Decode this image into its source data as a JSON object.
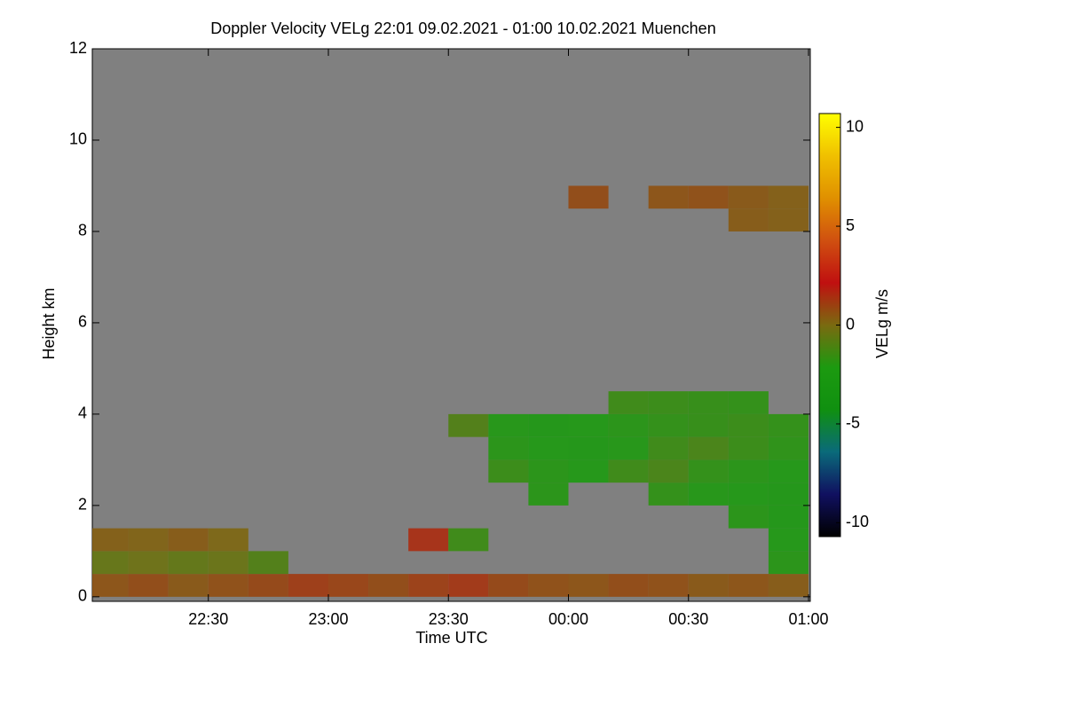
{
  "chart_data": {
    "type": "heatmap",
    "title": "Doppler Velocity VELg   22:01 09.02.2021 - 01:00 10.02.2021 Muenchen",
    "xlabel": "Time UTC",
    "ylabel": "Height km",
    "colorbar_label": "VELg m/s",
    "x": [
      "22:01",
      "22:10",
      "22:20",
      "22:30",
      "22:40",
      "22:50",
      "23:00",
      "23:10",
      "23:20",
      "23:30",
      "23:40",
      "23:50",
      "00:00",
      "00:10",
      "00:20",
      "00:30",
      "00:40",
      "00:50",
      "01:00"
    ],
    "y": [
      0,
      0.5,
      1,
      1.5,
      2,
      2.5,
      3,
      3.5,
      4,
      4.5,
      5,
      5.5,
      6,
      6.5,
      7,
      7.5,
      8,
      8.5,
      9,
      9.5,
      10,
      10.5,
      11,
      11.5,
      12
    ],
    "z": [
      [
        0.6,
        0.8,
        0.5,
        0.7,
        0.9,
        1.2,
        1.0,
        0.8,
        1.1,
        1.3,
        0.9,
        0.7,
        0.6,
        0.8,
        0.7,
        0.5,
        0.6,
        0.4
      ],
      [
        -0.5,
        -0.3,
        -0.6,
        -0.4,
        -1.0,
        null,
        null,
        null,
        null,
        null,
        null,
        null,
        null,
        null,
        null,
        null,
        null,
        -2.0
      ],
      [
        0.3,
        0.2,
        0.4,
        0.1,
        null,
        null,
        null,
        null,
        1.5,
        -1.5,
        null,
        null,
        null,
        null,
        null,
        null,
        null,
        -2.2
      ],
      [
        null,
        null,
        null,
        null,
        null,
        null,
        null,
        null,
        null,
        null,
        null,
        null,
        null,
        null,
        null,
        null,
        -2.0,
        -2.3
      ],
      [
        null,
        null,
        null,
        null,
        null,
        null,
        null,
        null,
        null,
        null,
        null,
        -2.0,
        null,
        null,
        -1.8,
        -2.1,
        -2.2,
        -2.4
      ],
      [
        null,
        null,
        null,
        null,
        null,
        null,
        null,
        null,
        null,
        null,
        -1.6,
        -2.0,
        -2.2,
        -1.5,
        -1.2,
        -1.8,
        -2.0,
        -2.2
      ],
      [
        null,
        null,
        null,
        null,
        null,
        null,
        null,
        null,
        null,
        null,
        -2.0,
        -2.2,
        -2.3,
        -2.1,
        -1.5,
        -1.2,
        -1.6,
        -1.9
      ],
      [
        null,
        null,
        null,
        null,
        null,
        null,
        null,
        null,
        null,
        -1.0,
        -2.1,
        -2.3,
        -2.2,
        -2.0,
        -1.8,
        -1.7,
        -1.6,
        -1.8
      ],
      [
        null,
        null,
        null,
        null,
        null,
        null,
        null,
        null,
        null,
        null,
        null,
        null,
        null,
        -1.5,
        -1.6,
        -1.7,
        -1.8,
        null
      ],
      [
        null,
        null,
        null,
        null,
        null,
        null,
        null,
        null,
        null,
        null,
        null,
        null,
        null,
        null,
        null,
        null,
        null,
        null
      ],
      [
        null,
        null,
        null,
        null,
        null,
        null,
        null,
        null,
        null,
        null,
        null,
        null,
        null,
        null,
        null,
        null,
        null,
        null
      ],
      [
        null,
        null,
        null,
        null,
        null,
        null,
        null,
        null,
        null,
        null,
        null,
        null,
        null,
        null,
        null,
        null,
        null,
        null
      ],
      [
        null,
        null,
        null,
        null,
        null,
        null,
        null,
        null,
        null,
        null,
        null,
        null,
        null,
        null,
        null,
        null,
        null,
        null
      ],
      [
        null,
        null,
        null,
        null,
        null,
        null,
        null,
        null,
        null,
        null,
        null,
        null,
        null,
        null,
        null,
        null,
        null,
        null
      ],
      [
        null,
        null,
        null,
        null,
        null,
        null,
        null,
        null,
        null,
        null,
        null,
        null,
        null,
        null,
        null,
        null,
        null,
        null
      ],
      [
        null,
        null,
        null,
        null,
        null,
        null,
        null,
        null,
        null,
        null,
        null,
        null,
        null,
        null,
        null,
        null,
        null,
        null
      ],
      [
        null,
        null,
        null,
        null,
        null,
        null,
        null,
        null,
        null,
        null,
        null,
        null,
        null,
        null,
        null,
        null,
        0.4,
        0.3
      ],
      [
        null,
        null,
        null,
        null,
        null,
        null,
        null,
        null,
        null,
        null,
        null,
        null,
        0.8,
        null,
        0.6,
        0.7,
        0.5,
        0.3
      ],
      [
        null,
        null,
        null,
        null,
        null,
        null,
        null,
        null,
        null,
        null,
        null,
        null,
        null,
        null,
        null,
        null,
        null,
        null
      ],
      [
        null,
        null,
        null,
        null,
        null,
        null,
        null,
        null,
        null,
        null,
        null,
        null,
        null,
        null,
        null,
        null,
        null,
        null
      ],
      [
        null,
        null,
        null,
        null,
        null,
        null,
        null,
        null,
        null,
        null,
        null,
        null,
        null,
        null,
        null,
        null,
        null,
        null
      ],
      [
        null,
        null,
        null,
        null,
        null,
        null,
        null,
        null,
        null,
        null,
        null,
        null,
        null,
        null,
        null,
        null,
        null,
        null
      ],
      [
        null,
        null,
        null,
        null,
        null,
        null,
        null,
        null,
        null,
        null,
        null,
        null,
        null,
        null,
        null,
        null,
        null,
        null
      ],
      [
        null,
        null,
        null,
        null,
        null,
        null,
        null,
        null,
        null,
        null,
        null,
        null,
        null,
        null,
        null,
        null,
        null,
        null
      ]
    ],
    "xlim": [
      "22:01",
      "01:00"
    ],
    "xticks": [
      "22:30",
      "23:00",
      "23:30",
      "00:00",
      "00:30",
      "01:00"
    ],
    "ylim": [
      -0.1,
      12
    ],
    "yticks": [
      0,
      2,
      4,
      6,
      8,
      10,
      12
    ],
    "zlim": [
      -10.7,
      10.7
    ],
    "zticks": [
      -10,
      -5,
      0,
      5,
      10
    ],
    "colormap": [
      "#000000",
      "#101060",
      "#0a6a7a",
      "#109010",
      "#1c9a10",
      "#7a6a10",
      "#c01010",
      "#d05010",
      "#e09000",
      "#f0c000",
      "#ffff00"
    ]
  }
}
